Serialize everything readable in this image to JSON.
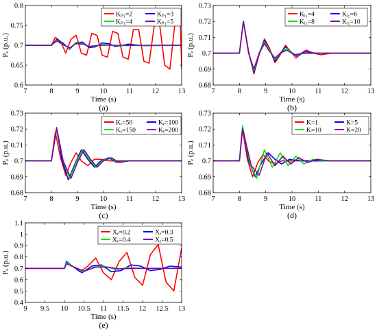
{
  "chart_data": [
    {
      "id": "a",
      "type": "line",
      "panel_label": "(a)",
      "xlabel": "Time (s)",
      "ylabel": "Pₑ (p.u.)",
      "xlim": [
        7,
        13
      ],
      "ylim": [
        0.6,
        0.8
      ],
      "xticks": [
        "7",
        "8",
        "9",
        "10",
        "11",
        "12",
        "13"
      ],
      "yticks": [
        "0.6",
        "0.65",
        "0.7",
        "0.75",
        "0.8"
      ],
      "legend_position": "top-center",
      "series": [
        {
          "name": "Kₚ₁=2",
          "color": "#ff0000",
          "x": [
            7,
            8,
            8.15,
            8.35,
            8.55,
            8.75,
            8.95,
            9.15,
            9.35,
            9.55,
            9.75,
            9.95,
            10.15,
            10.35,
            10.55,
            10.75,
            10.95,
            11.15,
            11.35,
            11.55,
            11.75,
            11.95,
            12.15,
            12.35,
            12.55,
            12.75,
            12.95,
            13
          ],
          "y": [
            0.7,
            0.7,
            0.72,
            0.71,
            0.68,
            0.715,
            0.725,
            0.68,
            0.675,
            0.73,
            0.725,
            0.675,
            0.67,
            0.735,
            0.73,
            0.67,
            0.665,
            0.74,
            0.74,
            0.66,
            0.655,
            0.75,
            0.755,
            0.65,
            0.64,
            0.76,
            0.76,
            0.64
          ]
        },
        {
          "name": "Kₚ₁=3",
          "color": "#0000ff",
          "x": [
            7,
            8,
            8.2,
            8.45,
            8.7,
            8.95,
            9.2,
            9.45,
            9.7,
            9.95,
            10.2,
            10.45,
            10.7,
            10.95,
            11.2,
            11.5,
            13
          ],
          "y": [
            0.7,
            0.7,
            0.715,
            0.705,
            0.69,
            0.707,
            0.708,
            0.694,
            0.696,
            0.706,
            0.704,
            0.697,
            0.699,
            0.703,
            0.701,
            0.699,
            0.7
          ]
        },
        {
          "name": "Kₚ₁=4",
          "color": "#00e000",
          "x": [
            7,
            8,
            8.2,
            8.45,
            8.7,
            8.95,
            9.2,
            9.45,
            9.7,
            9.95,
            10.2,
            10.5,
            13
          ],
          "y": [
            0.7,
            0.7,
            0.713,
            0.702,
            0.692,
            0.706,
            0.705,
            0.696,
            0.698,
            0.703,
            0.701,
            0.699,
            0.7
          ]
        },
        {
          "name": "Kₚ₁=5",
          "color": "#8000a0",
          "x": [
            7,
            8,
            8.2,
            8.45,
            8.7,
            8.95,
            9.2,
            9.45,
            9.7,
            10,
            13
          ],
          "y": [
            0.7,
            0.7,
            0.711,
            0.701,
            0.694,
            0.704,
            0.703,
            0.697,
            0.699,
            0.7,
            0.7
          ]
        }
      ]
    },
    {
      "id": "b",
      "type": "line",
      "panel_label": "(b)",
      "xlabel": "Time (s)",
      "ylabel": "Pₑ (p.u.)",
      "xlim": [
        7,
        13
      ],
      "ylim": [
        0.68,
        0.73
      ],
      "xticks": [
        "7",
        "8",
        "9",
        "10",
        "11",
        "12",
        "13"
      ],
      "yticks": [
        "0.68",
        "0.69",
        "0.7",
        "0.71",
        "0.72",
        "0.73"
      ],
      "legend_position": "top-right",
      "series": [
        {
          "name": "Kᵢ₁=4",
          "color": "#ff0000",
          "x": [
            7,
            8,
            8.15,
            8.35,
            8.55,
            8.75,
            8.95,
            9.15,
            9.35,
            9.55,
            9.75,
            9.95,
            10.15,
            10.35,
            10.55,
            10.8,
            11.1,
            11.5,
            13
          ],
          "y": [
            0.7,
            0.7,
            0.72,
            0.701,
            0.687,
            0.699,
            0.709,
            0.703,
            0.694,
            0.699,
            0.705,
            0.701,
            0.697,
            0.7,
            0.702,
            0.7,
            0.699,
            0.7,
            0.7
          ]
        },
        {
          "name": "Kᵢ₁=6",
          "color": "#0000ff",
          "x": [
            7,
            8,
            8.15,
            8.35,
            8.55,
            8.75,
            8.95,
            9.15,
            9.35,
            9.55,
            9.75,
            9.95,
            10.2,
            10.5,
            10.9,
            13
          ],
          "y": [
            0.7,
            0.7,
            0.72,
            0.7,
            0.688,
            0.7,
            0.708,
            0.702,
            0.695,
            0.7,
            0.704,
            0.701,
            0.698,
            0.701,
            0.7,
            0.7
          ]
        },
        {
          "name": "Kᵢ₁=8",
          "color": "#00e000",
          "x": [
            7,
            8,
            8.15,
            8.35,
            8.55,
            8.75,
            8.95,
            9.15,
            9.35,
            9.55,
            9.8,
            10.1,
            10.5,
            13
          ],
          "y": [
            0.7,
            0.7,
            0.72,
            0.7,
            0.689,
            0.7,
            0.707,
            0.702,
            0.696,
            0.7,
            0.703,
            0.699,
            0.7,
            0.7
          ]
        },
        {
          "name": "Kᵢ₁=10",
          "color": "#8000a0",
          "x": [
            7,
            8,
            8.15,
            8.35,
            8.55,
            8.75,
            8.95,
            9.15,
            9.35,
            9.55,
            9.8,
            10.1,
            10.4,
            13
          ],
          "y": [
            0.7,
            0.7,
            0.72,
            0.7,
            0.69,
            0.7,
            0.706,
            0.701,
            0.697,
            0.7,
            0.702,
            0.699,
            0.7,
            0.7
          ]
        }
      ]
    },
    {
      "id": "c",
      "type": "line",
      "panel_label": "(c)",
      "xlabel": "Time (s)",
      "ylabel": "Pₑ (p.u.)",
      "xlim": [
        7,
        13
      ],
      "ylim": [
        0.68,
        0.73
      ],
      "xticks": [
        "7",
        "8",
        "9",
        "10",
        "11",
        "12",
        "13"
      ],
      "yticks": [
        "0.68",
        "0.69",
        "0.7",
        "0.71",
        "0.72",
        "0.73"
      ],
      "legend_position": "top-right",
      "series": [
        {
          "name": "Kₑ=50",
          "color": "#ff0000",
          "x": [
            7,
            8,
            8.15,
            8.35,
            8.55,
            8.75,
            8.95,
            9.15,
            9.4,
            9.65,
            9.9,
            10.2,
            10.6,
            13
          ],
          "y": [
            0.7,
            0.7,
            0.718,
            0.702,
            0.691,
            0.699,
            0.705,
            0.7,
            0.697,
            0.701,
            0.701,
            0.7,
            0.7,
            0.7
          ]
        },
        {
          "name": "Kₑ=100",
          "color": "#0000ff",
          "x": [
            7,
            8,
            8.2,
            8.4,
            8.65,
            8.9,
            9.15,
            9.4,
            9.65,
            9.9,
            10.2,
            10.5,
            10.8,
            13
          ],
          "y": [
            0.7,
            0.7,
            0.72,
            0.701,
            0.688,
            0.698,
            0.707,
            0.701,
            0.696,
            0.7,
            0.702,
            0.699,
            0.7,
            0.7
          ]
        },
        {
          "name": "Kₑ=150",
          "color": "#00e000",
          "x": [
            7,
            8,
            8.2,
            8.45,
            8.7,
            8.95,
            9.2,
            9.45,
            9.7,
            9.95,
            10.25,
            10.55,
            10.9,
            13
          ],
          "y": [
            0.7,
            0.7,
            0.72,
            0.7,
            0.689,
            0.699,
            0.707,
            0.701,
            0.696,
            0.7,
            0.702,
            0.699,
            0.7,
            0.7
          ]
        },
        {
          "name": "Kₑ=200",
          "color": "#8000a0",
          "x": [
            7,
            8,
            8.2,
            8.45,
            8.75,
            9.0,
            9.25,
            9.5,
            9.75,
            10.0,
            10.3,
            10.6,
            11.0,
            13
          ],
          "y": [
            0.7,
            0.7,
            0.721,
            0.7,
            0.689,
            0.699,
            0.707,
            0.701,
            0.696,
            0.7,
            0.702,
            0.699,
            0.7,
            0.7
          ]
        }
      ]
    },
    {
      "id": "d",
      "type": "line",
      "panel_label": "(d)",
      "xlabel": "Time (s)",
      "ylabel": "Pₑ (p.u.)",
      "xlim": [
        7,
        13
      ],
      "ylim": [
        0.68,
        0.73
      ],
      "xticks": [
        "7",
        "8",
        "9",
        "10",
        "11",
        "12",
        "13"
      ],
      "yticks": [
        "0.68",
        "0.69",
        "0.7",
        "0.71",
        "0.72",
        "0.73"
      ],
      "legend_position": "top-right",
      "series": [
        {
          "name": "K=1",
          "color": "#ff0000",
          "x": [
            7,
            8,
            8.12,
            8.3,
            8.5,
            8.7,
            8.9,
            9.1,
            9.35,
            9.6,
            10,
            13
          ],
          "y": [
            0.7,
            0.7,
            0.72,
            0.701,
            0.69,
            0.699,
            0.704,
            0.7,
            0.698,
            0.7,
            0.7,
            0.7
          ]
        },
        {
          "name": "K=5",
          "color": "#0000ff",
          "x": [
            7,
            8,
            8.12,
            8.35,
            8.6,
            8.85,
            9.1,
            9.35,
            9.6,
            9.9,
            10.3,
            13
          ],
          "y": [
            0.7,
            0.7,
            0.722,
            0.7,
            0.69,
            0.699,
            0.705,
            0.701,
            0.698,
            0.701,
            0.7,
            0.7
          ]
        },
        {
          "name": "K=10",
          "color": "#00e000",
          "x": [
            7,
            8,
            8.12,
            8.4,
            8.65,
            8.95,
            9.25,
            9.55,
            9.85,
            10.15,
            10.45,
            10.8,
            11.2,
            13
          ],
          "y": [
            0.7,
            0.7,
            0.722,
            0.698,
            0.689,
            0.707,
            0.696,
            0.705,
            0.697,
            0.703,
            0.698,
            0.701,
            0.7,
            0.7
          ]
        },
        {
          "name": "K=20",
          "color": "#8000a0",
          "x": [
            7,
            8,
            8.12,
            8.45,
            8.75,
            9.05,
            9.35,
            9.65,
            9.95,
            10.25,
            10.6,
            10.95,
            11.4,
            13
          ],
          "y": [
            0.7,
            0.7,
            0.72,
            0.697,
            0.691,
            0.705,
            0.697,
            0.703,
            0.698,
            0.702,
            0.699,
            0.701,
            0.7,
            0.7
          ]
        }
      ]
    },
    {
      "id": "e",
      "type": "line",
      "panel_label": "(e)",
      "xlabel": "Time (s)",
      "ylabel": "Pₑ (p.u.)",
      "xlim": [
        9,
        13
      ],
      "ylim": [
        0.4,
        1.1
      ],
      "xticks": [
        "9",
        "9.5",
        "10",
        "10.5",
        "11",
        "11.5",
        "12",
        "12.5",
        "13"
      ],
      "yticks": [
        "0.4",
        "0.5",
        "0.6",
        "0.7",
        "0.8",
        "0.9",
        "1",
        "1.1"
      ],
      "legend_position": "top-right",
      "series": [
        {
          "name": "Xₑ=0.2",
          "color": "#ff0000",
          "x": [
            9,
            10,
            10.05,
            10.2,
            10.4,
            10.6,
            10.8,
            11.0,
            11.2,
            11.4,
            11.6,
            11.8,
            12.0,
            12.2,
            12.4,
            12.6,
            12.8,
            13
          ],
          "y": [
            0.7,
            0.7,
            0.75,
            0.72,
            0.67,
            0.72,
            0.79,
            0.66,
            0.6,
            0.76,
            0.84,
            0.62,
            0.55,
            0.82,
            0.91,
            0.58,
            0.5,
            0.88
          ]
        },
        {
          "name": "Xₑ=0.3",
          "color": "#0000ff",
          "x": [
            9,
            10,
            10.05,
            10.2,
            10.45,
            10.7,
            10.95,
            11.2,
            11.45,
            11.7,
            11.95,
            12.2,
            12.45,
            12.7,
            13
          ],
          "y": [
            0.7,
            0.7,
            0.76,
            0.72,
            0.66,
            0.72,
            0.73,
            0.67,
            0.68,
            0.73,
            0.72,
            0.68,
            0.69,
            0.72,
            0.71
          ]
        },
        {
          "name": "Xₑ=0.4",
          "color": "#00e000",
          "x": [
            9,
            10,
            10.05,
            10.25,
            10.5,
            10.75,
            11.0,
            11.3,
            11.6,
            12.0,
            13
          ],
          "y": [
            0.7,
            0.7,
            0.75,
            0.71,
            0.67,
            0.71,
            0.72,
            0.69,
            0.705,
            0.7,
            0.7
          ]
        },
        {
          "name": "Xₑ=0.5",
          "color": "#8000a0",
          "x": [
            9,
            10,
            10.05,
            10.25,
            10.5,
            10.8,
            11.1,
            11.4,
            11.8,
            13
          ],
          "y": [
            0.7,
            0.7,
            0.74,
            0.71,
            0.675,
            0.71,
            0.71,
            0.695,
            0.7,
            0.7
          ]
        }
      ]
    }
  ]
}
